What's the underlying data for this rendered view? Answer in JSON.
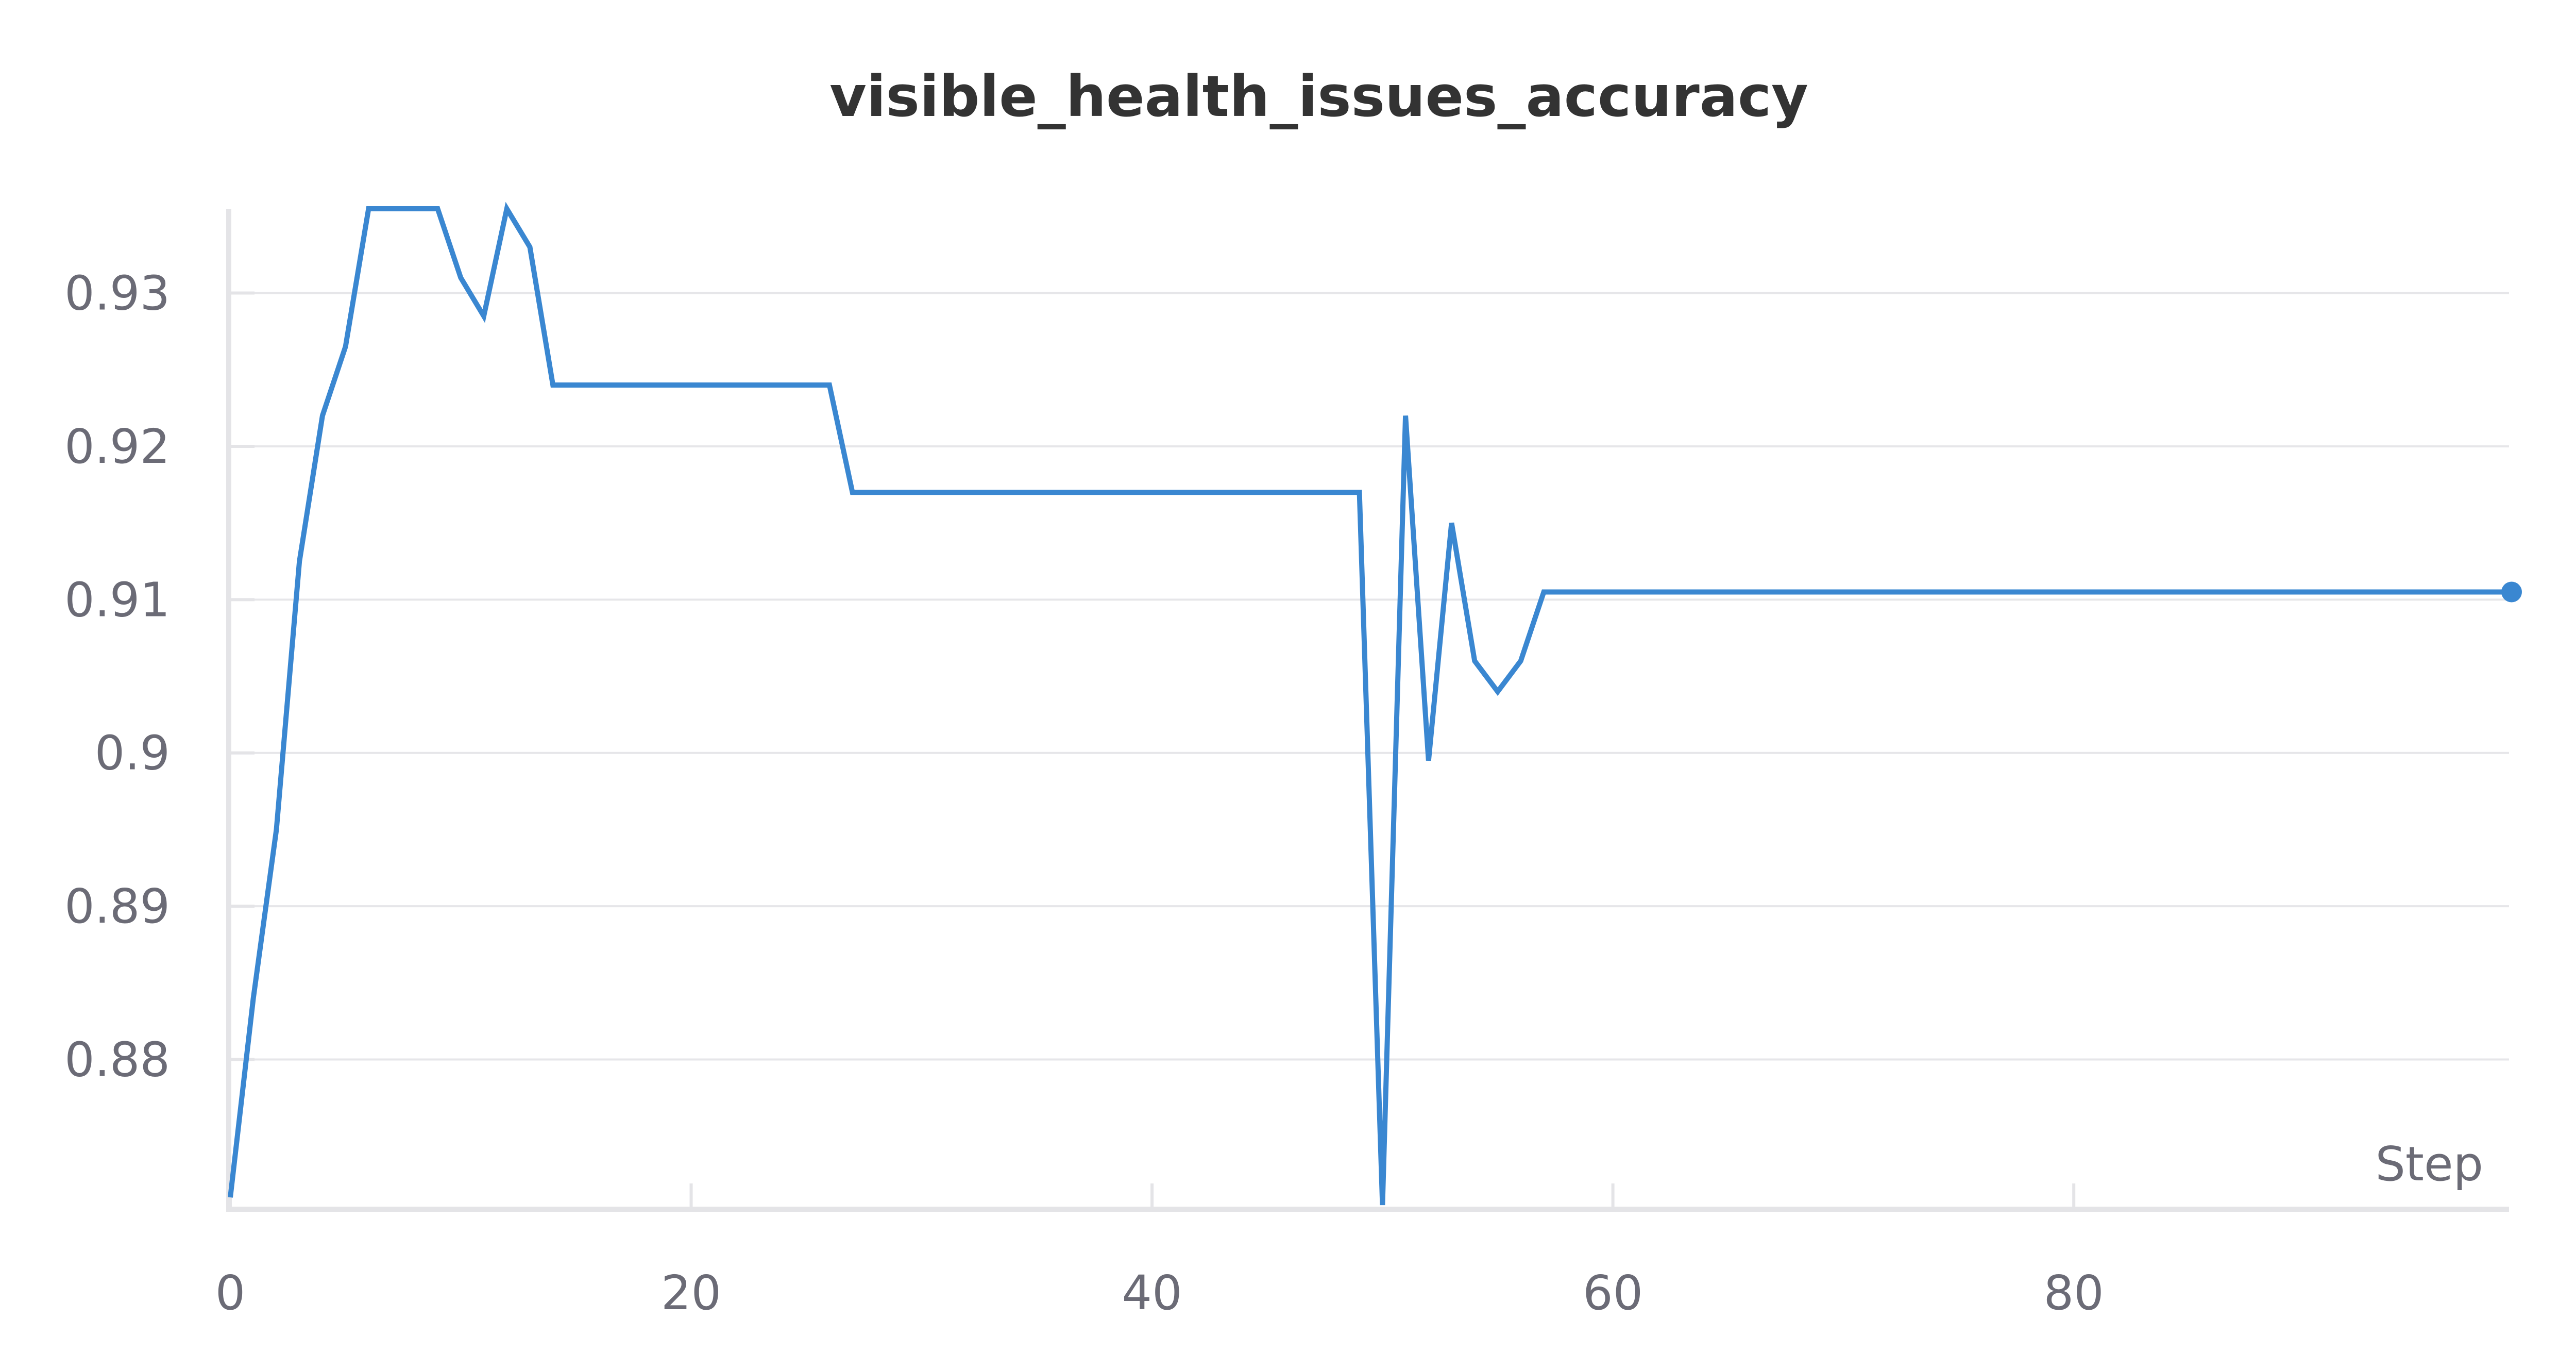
{
  "chart_data": {
    "type": "line",
    "title": "visible_health_issues_accuracy",
    "xlabel": "Step",
    "ylabel": "",
    "xlim": [
      0,
      99
    ],
    "ylim": [
      0.8705,
      0.9355
    ],
    "xticks": [
      0,
      20,
      40,
      60,
      80
    ],
    "yticks": [
      0.88,
      0.89,
      0.9,
      0.91,
      0.92,
      0.93
    ],
    "ytick_labels": [
      "0.88",
      "0.89",
      "0.9",
      "0.91",
      "0.92",
      "0.93"
    ],
    "grid": "horizontal",
    "line_color": "#3a87d1",
    "series": [
      {
        "x": [
          0,
          1,
          2,
          3,
          4,
          5,
          6,
          7,
          8,
          9,
          10,
          11,
          12,
          13,
          14,
          26,
          27,
          49,
          50,
          51,
          52,
          53,
          54,
          55,
          56,
          57,
          99
        ],
        "values": [
          0.871,
          0.884,
          0.895,
          0.9125,
          0.922,
          0.9265,
          0.9355,
          0.9355,
          0.9355,
          0.9355,
          0.931,
          0.9285,
          0.9355,
          0.933,
          0.924,
          0.924,
          0.917,
          0.917,
          0.8705,
          0.922,
          0.8995,
          0.915,
          0.906,
          0.904,
          0.906,
          0.9105,
          0.9105
        ]
      }
    ]
  }
}
